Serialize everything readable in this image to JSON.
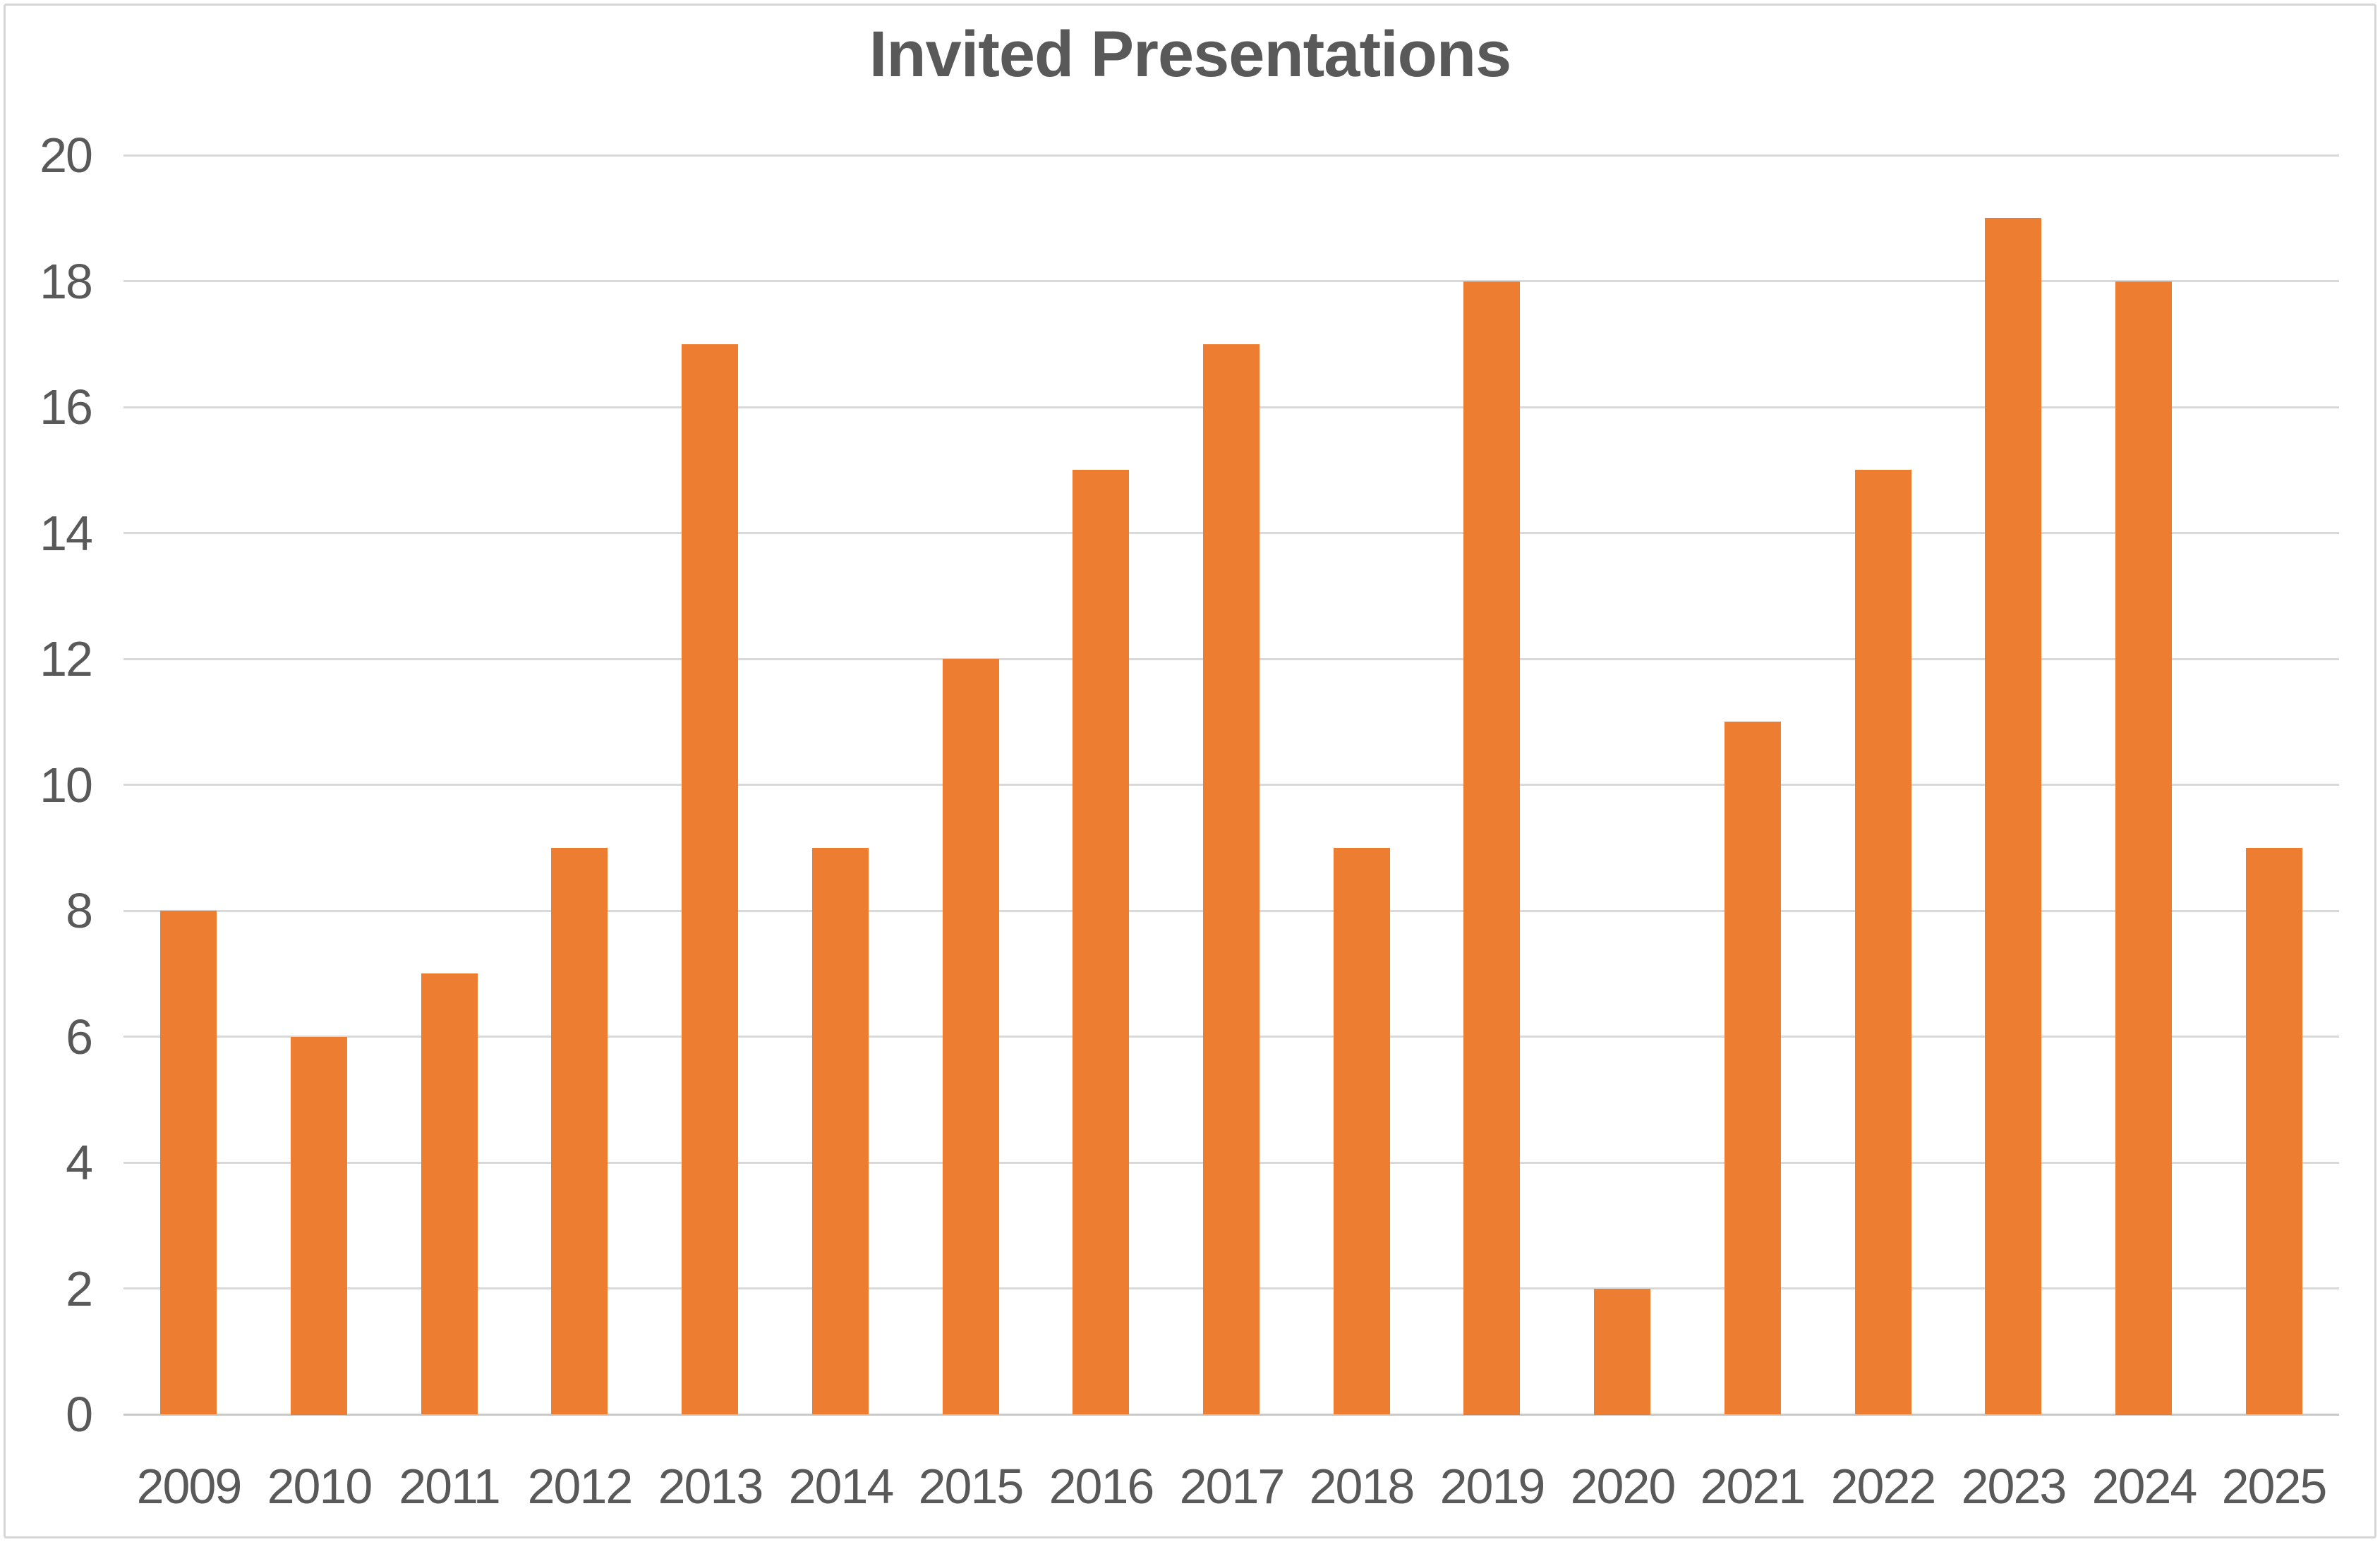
{
  "chart_data": {
    "type": "bar",
    "title": "Invited Presentations",
    "categories": [
      "2009",
      "2010",
      "2011",
      "2012",
      "2013",
      "2014",
      "2015",
      "2016",
      "2017",
      "2018",
      "2019",
      "2020",
      "2021",
      "2022",
      "2023",
      "2024",
      "2025"
    ],
    "values": [
      8,
      6,
      7,
      9,
      17,
      9,
      12,
      15,
      17,
      9,
      18,
      2,
      11,
      15,
      19,
      18,
      9
    ],
    "xlabel": "",
    "ylabel": "",
    "ylim": [
      0,
      20
    ],
    "ytick_step": 2,
    "yticks": [
      "0",
      "2",
      "4",
      "6",
      "8",
      "10",
      "12",
      "14",
      "16",
      "18",
      "20"
    ],
    "grid": "horizontal",
    "legend": "none",
    "colors": {
      "bar": "#ED7D31",
      "title": "#595959",
      "tick_label": "#595959",
      "gridline": "#D9D9D9",
      "axis_line": "#C9C9C9",
      "frame_border": "#D6D6D6",
      "background": "#FFFFFF"
    }
  }
}
